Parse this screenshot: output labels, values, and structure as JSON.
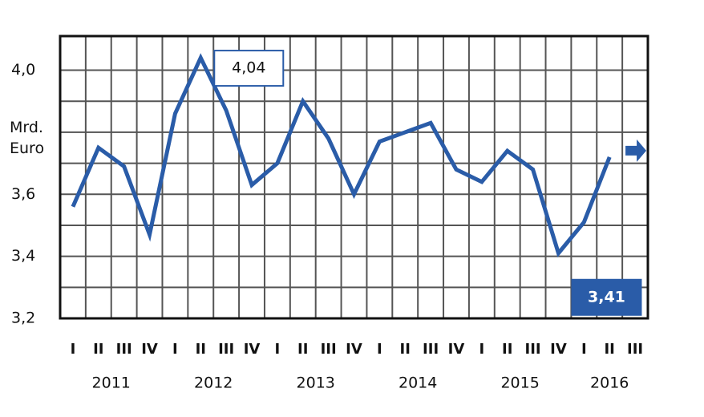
{
  "chart_data": {
    "type": "line",
    "y_label": "Mrd. Euro",
    "categories": [
      "I",
      "II",
      "III",
      "IV",
      "I",
      "II",
      "III",
      "IV",
      "I",
      "II",
      "III",
      "IV",
      "I",
      "II",
      "III",
      "IV",
      "I",
      "II",
      "III",
      "IV",
      "I",
      "II",
      "III"
    ],
    "years": [
      "2011",
      "2012",
      "2013",
      "2014",
      "2015",
      "2016"
    ],
    "values": [
      3.56,
      3.75,
      3.69,
      3.47,
      3.86,
      4.04,
      3.87,
      3.63,
      3.7,
      3.9,
      3.78,
      3.6,
      3.77,
      3.8,
      3.83,
      3.68,
      3.64,
      3.74,
      3.68,
      3.41,
      3.51,
      3.72,
      null
    ],
    "value_labels": [
      null,
      null,
      null,
      null,
      null,
      "4,04",
      null,
      null,
      null,
      null,
      null,
      null,
      null,
      null,
      null,
      null,
      null,
      null,
      null,
      "3,41",
      null,
      null,
      null
    ],
    "color": "#2a5ca8",
    "ylim": [
      3.2,
      4.11
    ],
    "yticks": [
      {
        "value": 3.2,
        "label": "3,2"
      },
      {
        "value": 3.4,
        "label": "3,4"
      },
      {
        "value": 3.6,
        "label": "3,6"
      },
      {
        "value": 4.0,
        "label": "4,0"
      }
    ],
    "ygrid": [
      3.3,
      3.5,
      3.7,
      3.8,
      3.9
    ],
    "grid": true
  }
}
